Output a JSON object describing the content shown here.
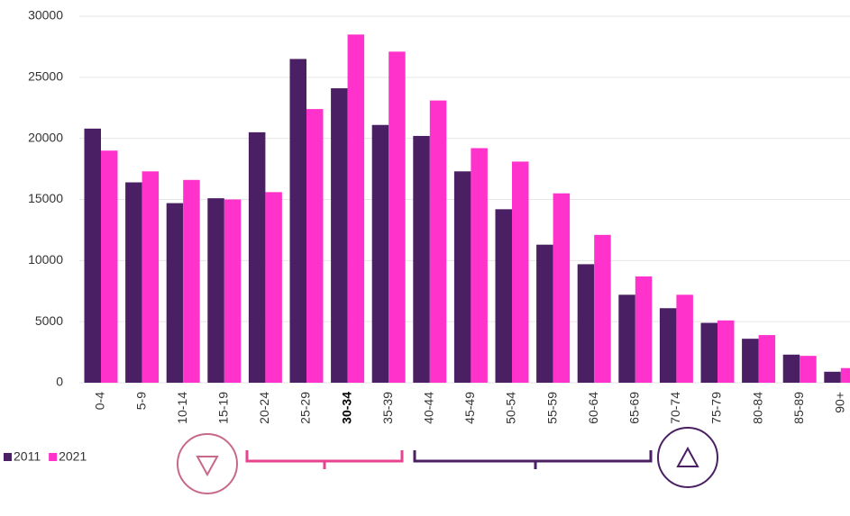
{
  "chart_data": {
    "type": "bar",
    "categories": [
      "0-4",
      "5-9",
      "10-14",
      "15-19",
      "20-24",
      "25-29",
      "30-34",
      "35-39",
      "40-44",
      "45-49",
      "50-54",
      "55-59",
      "60-64",
      "65-69",
      "70-74",
      "75-79",
      "80-84",
      "85-89",
      "90+"
    ],
    "series": [
      {
        "name": "2011",
        "color": "#4b1f63",
        "values": [
          20800,
          16400,
          14700,
          15100,
          20500,
          26500,
          24100,
          21100,
          20200,
          17300,
          14200,
          11300,
          9700,
          7200,
          6100,
          4900,
          3600,
          2300,
          900
        ]
      },
      {
        "name": "2021",
        "color": "#ff33cc",
        "values": [
          19000,
          17300,
          16600,
          15000,
          15600,
          22400,
          28500,
          27100,
          23100,
          19200,
          18100,
          15500,
          12100,
          8700,
          7200,
          5100,
          3900,
          2200,
          1200
        ]
      }
    ],
    "ylim": [
      0,
      30000
    ],
    "yticks": [
      0,
      5000,
      10000,
      15000,
      20000,
      25000,
      30000
    ],
    "grid": true
  }
}
